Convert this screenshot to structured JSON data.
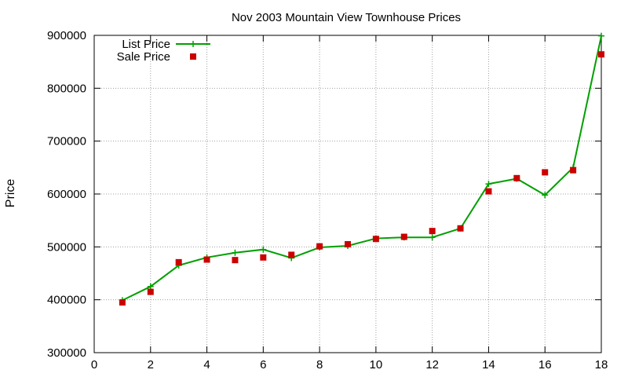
{
  "chart_data": {
    "type": "line",
    "title": "Nov 2003 Mountain View Townhouse Prices",
    "xlabel": "",
    "ylabel": "Price",
    "xlim": [
      0,
      18
    ],
    "ylim": [
      300000,
      900000
    ],
    "xticks": [
      0,
      2,
      4,
      6,
      8,
      10,
      12,
      14,
      16,
      18
    ],
    "yticks": [
      300000,
      400000,
      500000,
      600000,
      700000,
      800000,
      900000
    ],
    "grid": true,
    "legend_position": "top-left",
    "series": [
      {
        "name": "List Price",
        "type": "line",
        "color": "#00a000",
        "marker": "plus",
        "x": [
          1,
          2,
          3,
          4,
          5,
          6,
          7,
          8,
          9,
          10,
          11,
          12,
          13,
          14,
          15,
          16,
          17,
          18
        ],
        "values": [
          399000,
          425000,
          465000,
          480000,
          489000,
          495000,
          479000,
          499000,
          502000,
          516000,
          518000,
          518000,
          535000,
          619000,
          629000,
          598000,
          650000,
          899000
        ]
      },
      {
        "name": "Sale Price",
        "type": "scatter",
        "color": "#cc0000",
        "marker": "square",
        "x": [
          1,
          2,
          3,
          4,
          5,
          6,
          7,
          8,
          9,
          10,
          11,
          12,
          13,
          14,
          15,
          16,
          17,
          18
        ],
        "values": [
          395000,
          415000,
          471000,
          476000,
          475000,
          480000,
          485000,
          501000,
          505000,
          515000,
          519000,
          530000,
          535000,
          605000,
          630000,
          641000,
          645000,
          864000
        ]
      }
    ]
  }
}
